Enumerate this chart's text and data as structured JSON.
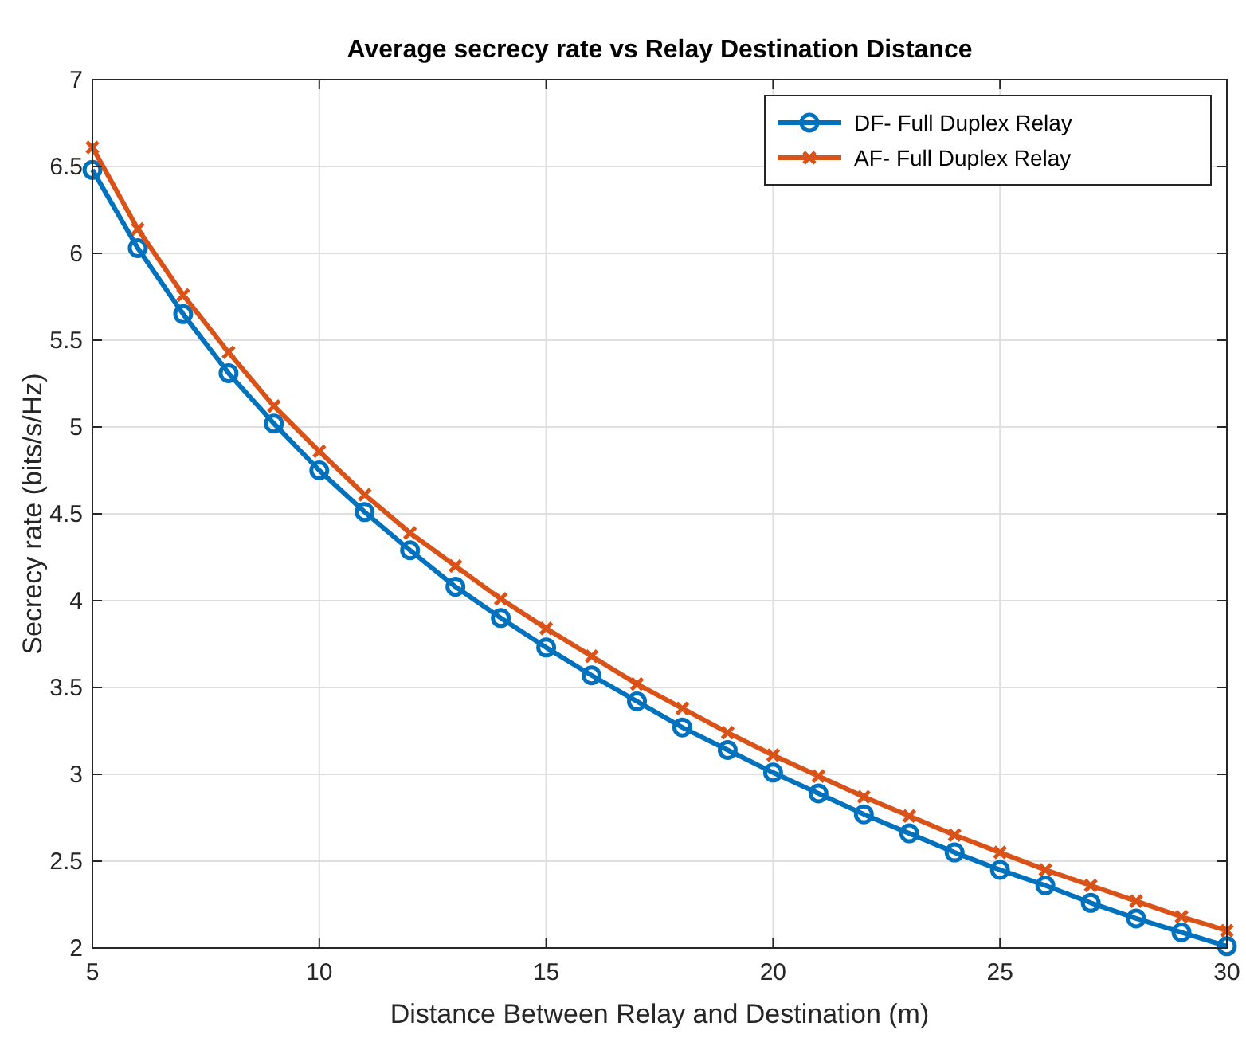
{
  "chart_data": {
    "type": "line",
    "title": "Average secrecy rate vs Relay Destination Distance",
    "xlabel": "Distance Between Relay and Destination (m)",
    "ylabel": "Secrecy rate (bits/s/Hz)",
    "x": [
      5,
      6,
      7,
      8,
      9,
      10,
      11,
      12,
      13,
      14,
      15,
      16,
      17,
      18,
      19,
      20,
      21,
      22,
      23,
      24,
      25,
      26,
      27,
      28,
      29,
      30
    ],
    "series": [
      {
        "name": "DF- Full Duplex Relay",
        "color": "#0072bd",
        "marker": "circle",
        "values": [
          6.48,
          6.03,
          5.65,
          5.31,
          5.02,
          4.75,
          4.51,
          4.29,
          4.08,
          3.9,
          3.73,
          3.57,
          3.42,
          3.27,
          3.14,
          3.01,
          2.89,
          2.77,
          2.66,
          2.55,
          2.45,
          2.36,
          2.26,
          2.17,
          2.09,
          2.01
        ]
      },
      {
        "name": "AF- Full Duplex Relay",
        "color": "#d95319",
        "marker": "cross",
        "values": [
          6.61,
          6.14,
          5.76,
          5.43,
          5.12,
          4.86,
          4.61,
          4.39,
          4.2,
          4.01,
          3.84,
          3.68,
          3.52,
          3.38,
          3.24,
          3.11,
          2.99,
          2.87,
          2.76,
          2.65,
          2.55,
          2.45,
          2.36,
          2.27,
          2.18,
          2.1
        ]
      }
    ],
    "xlim": [
      5,
      30
    ],
    "xticks": [
      5,
      10,
      15,
      20,
      25,
      30
    ],
    "ylim": [
      2,
      7
    ],
    "yticks": [
      2,
      2.5,
      3,
      3.5,
      4,
      4.5,
      5,
      5.5,
      6,
      6.5,
      7
    ],
    "grid": true,
    "legend": "top right",
    "line_style": "solid"
  }
}
